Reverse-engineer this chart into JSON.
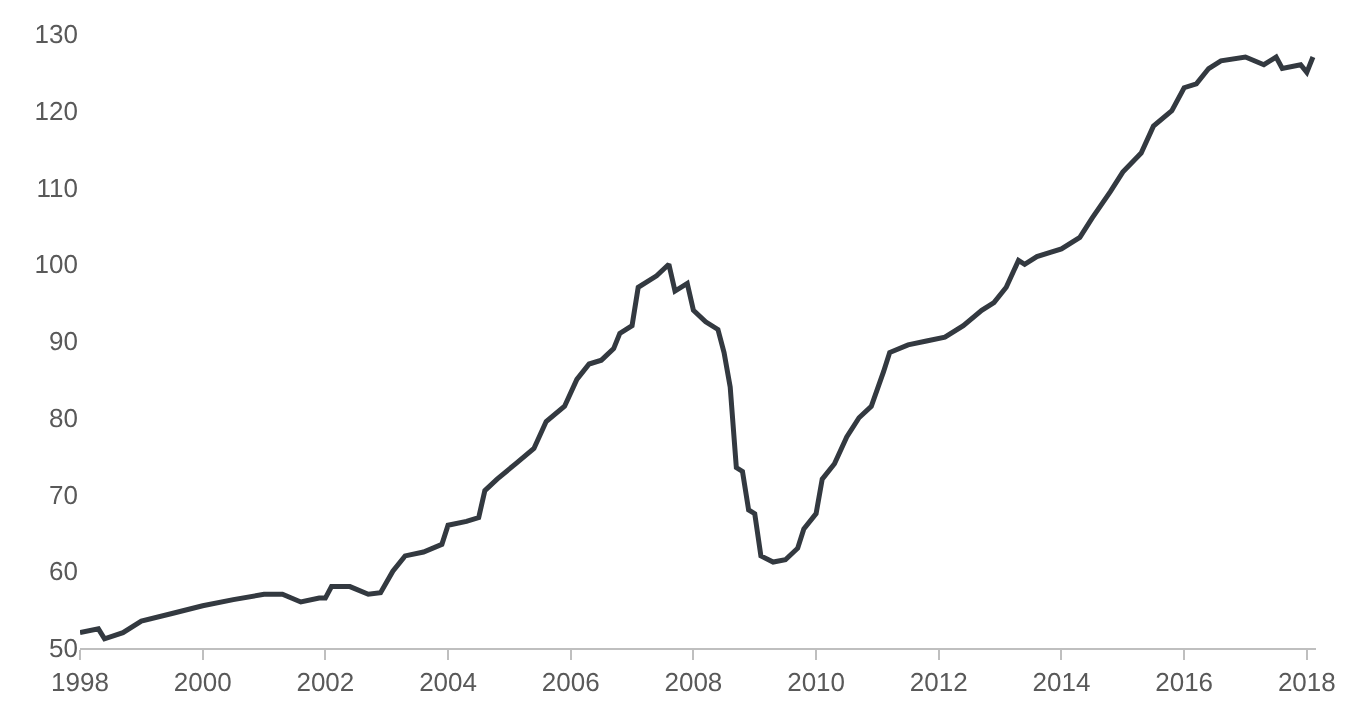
{
  "chart_data": {
    "type": "line",
    "x": [
      1998.0,
      1998.3,
      1998.4,
      1998.7,
      1999.0,
      1999.5,
      2000.0,
      2000.5,
      2001.0,
      2001.3,
      2001.6,
      2001.9,
      2002.0,
      2002.1,
      2002.4,
      2002.7,
      2002.9,
      2003.1,
      2003.3,
      2003.6,
      2003.9,
      2004.0,
      2004.3,
      2004.5,
      2004.6,
      2004.8,
      2005.1,
      2005.4,
      2005.6,
      2005.9,
      2006.1,
      2006.3,
      2006.5,
      2006.7,
      2006.8,
      2007.0,
      2007.1,
      2007.4,
      2007.6,
      2007.7,
      2007.9,
      2008.0,
      2008.2,
      2008.4,
      2008.5,
      2008.6,
      2008.7,
      2008.8,
      2008.9,
      2009.0,
      2009.1,
      2009.3,
      2009.5,
      2009.7,
      2009.8,
      2010.0,
      2010.1,
      2010.3,
      2010.5,
      2010.7,
      2010.9,
      2011.1,
      2011.2,
      2011.5,
      2011.8,
      2012.1,
      2012.4,
      2012.7,
      2012.9,
      2013.1,
      2013.3,
      2013.4,
      2013.6,
      2014.0,
      2014.3,
      2014.5,
      2014.8,
      2015.0,
      2015.3,
      2015.5,
      2015.8,
      2016.0,
      2016.2,
      2016.4,
      2016.6,
      2017.0,
      2017.3,
      2017.5,
      2017.6,
      2017.9,
      2018.0,
      2018.1
    ],
    "series": [
      {
        "color": "#333940",
        "values": [
          52,
          52.5,
          51.2,
          52,
          53.5,
          54.5,
          55.5,
          56.3,
          57,
          57,
          56,
          56.5,
          56.5,
          58,
          58,
          57,
          57.2,
          60,
          62,
          62.5,
          63.5,
          66,
          66.5,
          67,
          70.5,
          72,
          74,
          76,
          79.5,
          81.5,
          85,
          87,
          87.5,
          89,
          91,
          92,
          97,
          98.5,
          100,
          96.5,
          97.5,
          94,
          92.5,
          91.5,
          88.5,
          84,
          73.5,
          73,
          68,
          67.5,
          62,
          61.2,
          61.5,
          63,
          65.5,
          67.5,
          72,
          74,
          77.5,
          80,
          81.5,
          86,
          88.5,
          89.5,
          90,
          90.5,
          92,
          94,
          95,
          97,
          100.5,
          100,
          101,
          102,
          103.5,
          106,
          109.5,
          112,
          114.5,
          118,
          120,
          123,
          123.5,
          125.5,
          126.5,
          127,
          126,
          127,
          125.5,
          126,
          125,
          127
        ]
      }
    ],
    "xlim": [
      1998,
      2018.15
    ],
    "xticks": [
      1998,
      2000,
      2002,
      2004,
      2006,
      2008,
      2010,
      2012,
      2014,
      2016,
      2018
    ],
    "ylim": [
      50,
      130
    ],
    "yticks": [
      50,
      60,
      70,
      80,
      90,
      100,
      110,
      120,
      130
    ],
    "legend": false,
    "marker": "none",
    "line_style": "solid"
  }
}
